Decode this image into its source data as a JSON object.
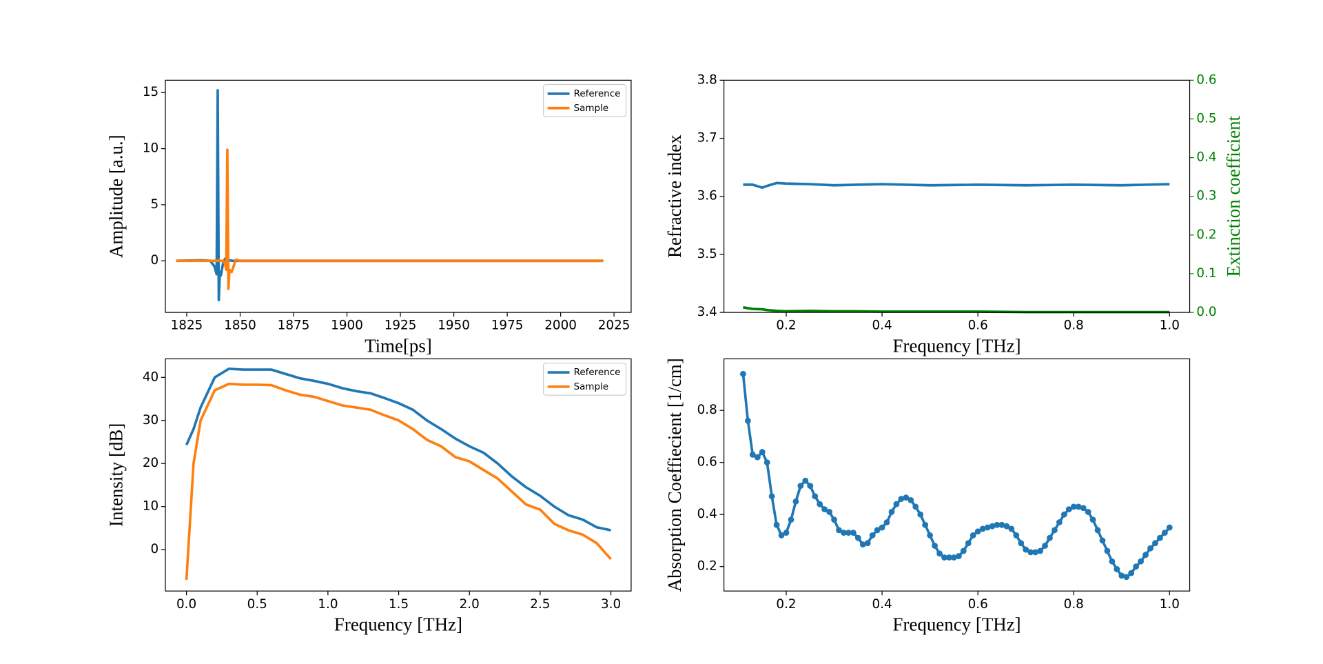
{
  "chart_data": [
    {
      "type": "line",
      "xlabel": "Time[ps]",
      "ylabel": "Amplitude [a.u.]",
      "x": [
        1820,
        1832,
        1836,
        1838,
        1839,
        1839.5,
        1840,
        1840.5,
        1841,
        1842,
        1843,
        1843.5,
        1844,
        1844.5,
        1845,
        1846,
        1848,
        1850,
        1860,
        2020
      ],
      "series": [
        {
          "name": "Reference",
          "color": "#1f77b4",
          "values": [
            0,
            0.05,
            0,
            -0.5,
            -1.2,
            15.2,
            -3.5,
            -1.0,
            -1.3,
            -0.2,
            0.2,
            0.1,
            0,
            0,
            0.05,
            0,
            0,
            0,
            0,
            0
          ]
        },
        {
          "name": "Sample",
          "color": "#ff7f0e",
          "values": [
            0,
            0,
            0,
            0,
            0,
            0,
            0.05,
            0,
            0,
            0,
            -0.3,
            -0.8,
            9.9,
            -2.5,
            -0.8,
            -1.0,
            0.1,
            0,
            0,
            0
          ]
        }
      ],
      "xlim": [
        1815,
        2033
      ],
      "xticks": [
        1825,
        1850,
        1875,
        1900,
        1925,
        1950,
        1975,
        2000,
        2025
      ],
      "ylim": [
        -4.6,
        16.1
      ],
      "yticks": [
        0,
        5,
        10,
        15
      ],
      "legend": "upper right",
      "grid": false
    },
    {
      "type": "line",
      "xlabel": "Frequency [THz]",
      "ylabel": "Refractive index",
      "y2label": "Extinction coefficient",
      "x": [
        0.11,
        0.13,
        0.15,
        0.16,
        0.18,
        0.2,
        0.25,
        0.3,
        0.35,
        0.4,
        0.5,
        0.6,
        0.7,
        0.8,
        0.9,
        1.0
      ],
      "series": [
        {
          "color": "#1f77b4",
          "values": [
            3.62,
            3.62,
            3.615,
            3.618,
            3.623,
            3.622,
            3.621,
            3.619,
            3.62,
            3.621,
            3.619,
            3.62,
            3.619,
            3.62,
            3.619,
            3.621
          ]
        },
        {
          "color": "#008000",
          "axis": "y2",
          "values": [
            0.013,
            0.009,
            0.008,
            0.006,
            0.004,
            0.003,
            0.004,
            0.003,
            0.003,
            0.002,
            0.002,
            0.002,
            0.001,
            0.001,
            0.001,
            0.001
          ]
        }
      ],
      "xlim": [
        0.07,
        1.042
      ],
      "xticks": [
        0.2,
        0.4,
        0.6,
        0.8,
        {
          "value": 1.0,
          "label": "1.0"
        }
      ],
      "ylim": [
        3.4,
        3.8
      ],
      "yticks": [
        3.4,
        3.5,
        3.6,
        3.7,
        3.8
      ],
      "y2lim": [
        0,
        0.6
      ],
      "y2ticks": [
        {
          "value": 0,
          "label": "0.0"
        },
        0.1,
        0.2,
        0.3,
        0.4,
        0.5,
        0.6
      ],
      "grid": false
    },
    {
      "type": "line",
      "xlabel": "Frequency [THz]",
      "ylabel": "Intensity [dB]",
      "x": [
        0,
        0.05,
        0.1,
        0.2,
        0.3,
        0.4,
        0.5,
        0.6,
        0.7,
        0.8,
        0.9,
        1.0,
        1.1,
        1.2,
        1.3,
        1.4,
        1.5,
        1.6,
        1.7,
        1.8,
        1.9,
        2.0,
        2.1,
        2.2,
        2.3,
        2.4,
        2.5,
        2.6,
        2.7,
        2.8,
        2.9,
        3.0
      ],
      "series": [
        {
          "name": "Reference",
          "color": "#1f77b4",
          "values": [
            24.3,
            28,
            33,
            40,
            42,
            41.8,
            41.8,
            41.8,
            40.8,
            39.8,
            39.2,
            38.5,
            37.5,
            36.8,
            36.3,
            35.2,
            34,
            32.5,
            30,
            28,
            25.8,
            24,
            22.5,
            20,
            17,
            14.5,
            12.5,
            10,
            8,
            7,
            5.2,
            4.5
          ]
        },
        {
          "name": "Sample",
          "color": "#ff7f0e",
          "values": [
            -7,
            20,
            30,
            37,
            38.5,
            38.3,
            38.3,
            38.2,
            37,
            36,
            35.5,
            34.5,
            33.5,
            33,
            32.5,
            31.2,
            30,
            28,
            25.5,
            24,
            21.5,
            20.5,
            18.5,
            16.5,
            13.5,
            10.5,
            9.3,
            6,
            4.5,
            3.5,
            1.5,
            -2.2
          ]
        }
      ],
      "xlim": [
        -0.149,
        3.143
      ],
      "xticks": [
        {
          "value": 0,
          "label": "0.0"
        },
        0.5,
        {
          "value": 1,
          "label": "1.0"
        },
        1.5,
        {
          "value": 2,
          "label": "2.0"
        },
        2.5,
        {
          "value": 3,
          "label": "3.0"
        }
      ],
      "ylim": [
        -9.6,
        44.3
      ],
      "yticks": [
        0,
        10,
        20,
        30,
        40
      ],
      "legend": "upper right",
      "grid": false
    },
    {
      "type": "line",
      "xlabel": "Frequency [THz]",
      "ylabel": "Absorption Coeffiecient [1/cm]",
      "markers": true,
      "x": [
        0.11,
        0.12,
        0.13,
        0.14,
        0.15,
        0.16,
        0.17,
        0.18,
        0.19,
        0.2,
        0.21,
        0.22,
        0.23,
        0.24,
        0.25,
        0.26,
        0.27,
        0.28,
        0.29,
        0.3,
        0.31,
        0.32,
        0.33,
        0.34,
        0.35,
        0.36,
        0.37,
        0.38,
        0.39,
        0.4,
        0.41,
        0.42,
        0.43,
        0.44,
        0.45,
        0.46,
        0.47,
        0.48,
        0.49,
        0.5,
        0.51,
        0.52,
        0.53,
        0.54,
        0.55,
        0.56,
        0.57,
        0.58,
        0.59,
        0.6,
        0.61,
        0.62,
        0.63,
        0.64,
        0.65,
        0.66,
        0.67,
        0.68,
        0.69,
        0.7,
        0.71,
        0.72,
        0.73,
        0.74,
        0.75,
        0.76,
        0.77,
        0.78,
        0.79,
        0.8,
        0.81,
        0.82,
        0.83,
        0.84,
        0.85,
        0.86,
        0.87,
        0.88,
        0.89,
        0.9,
        0.91,
        0.92,
        0.93,
        0.94,
        0.95,
        0.96,
        0.97,
        0.98,
        0.99,
        1.0
      ],
      "series": [
        {
          "color": "#1f77b4",
          "values": [
            0.94,
            0.76,
            0.63,
            0.62,
            0.64,
            0.6,
            0.47,
            0.36,
            0.32,
            0.33,
            0.38,
            0.45,
            0.51,
            0.53,
            0.51,
            0.47,
            0.44,
            0.42,
            0.41,
            0.38,
            0.34,
            0.33,
            0.33,
            0.33,
            0.31,
            0.285,
            0.29,
            0.32,
            0.34,
            0.35,
            0.37,
            0.41,
            0.44,
            0.46,
            0.465,
            0.455,
            0.43,
            0.4,
            0.36,
            0.32,
            0.28,
            0.25,
            0.235,
            0.235,
            0.235,
            0.24,
            0.26,
            0.29,
            0.32,
            0.335,
            0.345,
            0.35,
            0.355,
            0.36,
            0.36,
            0.355,
            0.345,
            0.32,
            0.29,
            0.265,
            0.255,
            0.255,
            0.26,
            0.28,
            0.31,
            0.34,
            0.37,
            0.4,
            0.42,
            0.43,
            0.43,
            0.425,
            0.41,
            0.38,
            0.34,
            0.3,
            0.26,
            0.22,
            0.19,
            0.165,
            0.16,
            0.175,
            0.2,
            0.22,
            0.245,
            0.27,
            0.29,
            0.31,
            0.33,
            0.35
          ]
        }
      ],
      "xlim": [
        0.07,
        1.042
      ],
      "xticks": [
        0.2,
        0.4,
        0.6,
        0.8,
        {
          "value": 1.0,
          "label": "1.0"
        }
      ],
      "ylim": [
        0.106,
        0.998
      ],
      "yticks": [
        0.2,
        0.4,
        0.6,
        0.8
      ],
      "grid": false
    }
  ]
}
